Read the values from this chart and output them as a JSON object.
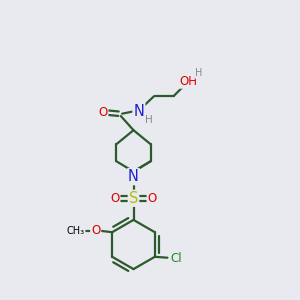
{
  "bg_color": "#e8eaf0",
  "bond_color": "#2d5a2d",
  "atom_colors": {
    "O": "#dd0000",
    "N": "#2020cc",
    "S": "#bbbb00",
    "Cl": "#208820",
    "C": "#000000",
    "H": "#888888"
  },
  "line_width": 1.6,
  "font_size": 8.5
}
